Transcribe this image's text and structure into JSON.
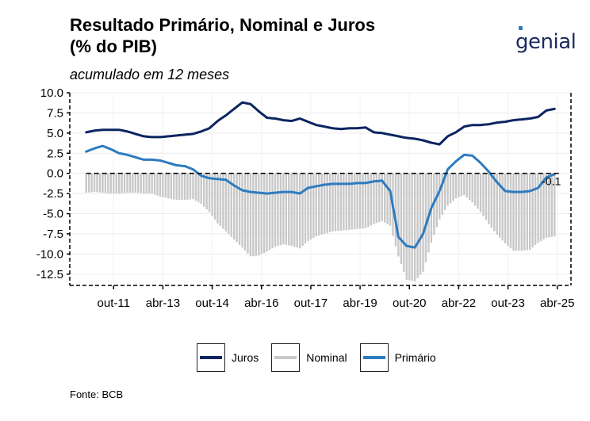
{
  "header": {
    "title_line1": "Resultado Primário, Nominal e Juros",
    "title_line2": "(% do PIB)",
    "subtitle": "acumulado em 12 meses",
    "logo_text": "genial"
  },
  "footer": {
    "source": "Fonte: BCB"
  },
  "colors": {
    "juros": "#0b2561",
    "nominal": "#c8c8c8",
    "primario": "#2e7bc0"
  },
  "chart_data": {
    "type": "line",
    "x_tick_labels": [
      "out-11",
      "abr-13",
      "out-14",
      "abr-16",
      "out-17",
      "abr-19",
      "out-20",
      "abr-22",
      "out-23",
      "abr-25"
    ],
    "y_tick_labels": [
      "10.0",
      "7.5",
      "5.0",
      "2.5",
      "0.0",
      "-2.5",
      "-5.0",
      "-7.5",
      "-10.0",
      "-12.5"
    ],
    "ylim": [
      -13.9,
      10.0
    ],
    "xlim": [
      "2010-06",
      "2025-09"
    ],
    "y_reference_line": 0,
    "legend_position": "bottom",
    "annotation": "-0.1",
    "dates": [
      "2010-12",
      "2011-03",
      "2011-06",
      "2011-09",
      "2011-12",
      "2012-03",
      "2012-06",
      "2012-09",
      "2012-12",
      "2013-03",
      "2013-06",
      "2013-09",
      "2013-12",
      "2014-03",
      "2014-06",
      "2014-09",
      "2014-12",
      "2015-03",
      "2015-06",
      "2015-09",
      "2015-12",
      "2016-03",
      "2016-06",
      "2016-09",
      "2016-12",
      "2017-03",
      "2017-06",
      "2017-09",
      "2017-12",
      "2018-03",
      "2018-06",
      "2018-09",
      "2018-12",
      "2019-03",
      "2019-06",
      "2019-09",
      "2019-12",
      "2020-03",
      "2020-06",
      "2020-09",
      "2020-12",
      "2021-03",
      "2021-06",
      "2021-09",
      "2021-12",
      "2022-03",
      "2022-06",
      "2022-09",
      "2022-12",
      "2023-03",
      "2023-06",
      "2023-09",
      "2023-12",
      "2024-03",
      "2024-06",
      "2024-09",
      "2024-12",
      "2025-03"
    ],
    "series": [
      {
        "name": "Juros",
        "key": "juros",
        "values": [
          5.1,
          5.3,
          5.4,
          5.4,
          5.4,
          5.2,
          4.9,
          4.6,
          4.5,
          4.5,
          4.6,
          4.7,
          4.8,
          4.9,
          5.2,
          5.6,
          6.5,
          7.2,
          8.0,
          8.8,
          8.6,
          7.7,
          6.9,
          6.8,
          6.6,
          6.5,
          6.8,
          6.4,
          6.0,
          5.8,
          5.6,
          5.5,
          5.6,
          5.6,
          5.7,
          5.1,
          5.0,
          4.8,
          4.6,
          4.4,
          4.3,
          4.1,
          3.8,
          3.6,
          4.6,
          5.1,
          5.8,
          6.0,
          6.0,
          6.1,
          6.3,
          6.4,
          6.6,
          6.7,
          6.8,
          7.0,
          7.8,
          8.0
        ]
      },
      {
        "name": "Nominal",
        "key": "nominal",
        "values": [
          -2.4,
          -2.3,
          -2.4,
          -2.5,
          -2.5,
          -2.4,
          -2.4,
          -2.5,
          -2.5,
          -2.9,
          -3.1,
          -3.3,
          -3.3,
          -3.2,
          -3.8,
          -4.8,
          -6.2,
          -7.2,
          -8.2,
          -9.2,
          -10.3,
          -10.2,
          -9.7,
          -9.1,
          -8.8,
          -9.0,
          -9.3,
          -8.4,
          -7.8,
          -7.5,
          -7.2,
          -7.1,
          -7.0,
          -6.9,
          -6.8,
          -6.3,
          -5.9,
          -6.5,
          -10.3,
          -13.2,
          -13.4,
          -12.2,
          -8.6,
          -5.7,
          -4.0,
          -3.1,
          -2.7,
          -3.6,
          -4.8,
          -6.3,
          -7.6,
          -8.7,
          -9.6,
          -9.6,
          -9.5,
          -8.6,
          -8.0,
          -7.8
        ]
      },
      {
        "name": "Primário",
        "key": "primario",
        "values": [
          2.7,
          3.1,
          3.4,
          3.0,
          2.5,
          2.3,
          2.0,
          1.7,
          1.7,
          1.6,
          1.3,
          1.0,
          0.9,
          0.5,
          -0.3,
          -0.6,
          -0.7,
          -0.8,
          -1.5,
          -2.1,
          -2.3,
          -2.4,
          -2.5,
          -2.4,
          -2.3,
          -2.3,
          -2.5,
          -1.8,
          -1.6,
          -1.4,
          -1.3,
          -1.3,
          -1.3,
          -1.2,
          -1.2,
          -1.0,
          -0.9,
          -2.2,
          -7.9,
          -9.0,
          -9.2,
          -7.5,
          -4.3,
          -2.2,
          0.5,
          1.5,
          2.3,
          2.2,
          1.3,
          0.2,
          -1.1,
          -2.2,
          -2.3,
          -2.3,
          -2.2,
          -1.8,
          -0.5,
          -0.1
        ]
      }
    ]
  }
}
